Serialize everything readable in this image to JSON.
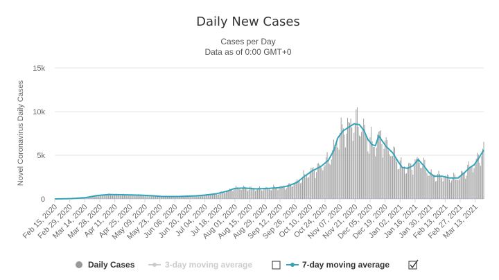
{
  "colors": {
    "bars": "#999999",
    "line": "#33a3b8",
    "grid": "#e6e6e6",
    "disabled": "#cccccc",
    "text": "#333333"
  },
  "chart_data": {
    "type": "bar",
    "title": "Daily New Cases",
    "subtitle": [
      "Cases per Day",
      "Data as of 0:00 GMT+0"
    ],
    "ylabel": "Novel Coronavirus Daily Cases",
    "xlabel": "",
    "ylim": [
      0,
      15000
    ],
    "yticks": [
      0,
      5000,
      10000,
      15000
    ],
    "ytick_labels": [
      "0",
      "5k",
      "10k",
      "15k"
    ],
    "grid": true,
    "x_start": "2020-02-15",
    "x_end": "2021-03-21",
    "xtick_labels": [
      "Feb 15, 2020",
      "Feb 29, 2020",
      "Mar 14, 2020",
      "Mar 28, 2020",
      "Apr 11, 2020",
      "Apr 25, 2020",
      "May 09, 2020",
      "May 23, 2020",
      "Jun 06, 2020",
      "Jun 20, 2020",
      "Jul 04, 2020",
      "Jul 18, 2020",
      "Aug 01, 2020",
      "Aug 15, 2020",
      "Aug 29, 2020",
      "Sep 12, 2020",
      "Sep 26, 2020",
      "Oct 10, 2020",
      "Oct 24, 2020",
      "Nov 07, 2020",
      "Nov 21, 2020",
      "Dec 05, 2020",
      "Dec 19, 2020",
      "Jan 02, 2021",
      "Jan 16, 2021",
      "Jan 30, 2021",
      "Feb 13, 2021",
      "Feb 27, 2021",
      "Mar 13, 2021"
    ],
    "legend_placement": "bottom",
    "series": [
      {
        "name": "Daily Cases",
        "type": "bar",
        "visible": true
      },
      {
        "name": "3-day moving average",
        "type": "line",
        "visible": false
      },
      {
        "name": "7-day moving average",
        "type": "line",
        "visible": true
      }
    ],
    "seven_day_average_points": [
      [
        "2020-02-15",
        0
      ],
      [
        "2020-03-01",
        30
      ],
      [
        "2020-03-15",
        150
      ],
      [
        "2020-03-25",
        380
      ],
      [
        "2020-04-05",
        500
      ],
      [
        "2020-04-20",
        470
      ],
      [
        "2020-05-05",
        430
      ],
      [
        "2020-05-15",
        370
      ],
      [
        "2020-05-25",
        280
      ],
      [
        "2020-06-10",
        280
      ],
      [
        "2020-06-25",
        350
      ],
      [
        "2020-07-05",
        450
      ],
      [
        "2020-07-15",
        600
      ],
      [
        "2020-07-25",
        900
      ],
      [
        "2020-08-01",
        1200
      ],
      [
        "2020-08-10",
        1250
      ],
      [
        "2020-08-20",
        1150
      ],
      [
        "2020-09-01",
        1200
      ],
      [
        "2020-09-12",
        1300
      ],
      [
        "2020-09-20",
        1500
      ],
      [
        "2020-09-28",
        1900
      ],
      [
        "2020-10-05",
        2600
      ],
      [
        "2020-10-12",
        3200
      ],
      [
        "2020-10-20",
        3700
      ],
      [
        "2020-10-27",
        4400
      ],
      [
        "2020-11-01",
        5500
      ],
      [
        "2020-11-05",
        7000
      ],
      [
        "2020-11-10",
        7800
      ],
      [
        "2020-11-15",
        8200
      ],
      [
        "2020-11-20",
        8600
      ],
      [
        "2020-11-25",
        8500
      ],
      [
        "2020-11-29",
        7900
      ],
      [
        "2020-12-03",
        6800
      ],
      [
        "2020-12-07",
        6200
      ],
      [
        "2020-12-10",
        6100
      ],
      [
        "2020-12-13",
        7200
      ],
      [
        "2020-12-16",
        6700
      ],
      [
        "2020-12-20",
        6000
      ],
      [
        "2020-12-26",
        5300
      ],
      [
        "2020-12-31",
        4300
      ],
      [
        "2021-01-04",
        3600
      ],
      [
        "2021-01-09",
        3500
      ],
      [
        "2021-01-14",
        3800
      ],
      [
        "2021-01-19",
        4500
      ],
      [
        "2021-01-24",
        3800
      ],
      [
        "2021-01-29",
        3000
      ],
      [
        "2021-02-03",
        2600
      ],
      [
        "2021-02-10",
        2600
      ],
      [
        "2021-02-17",
        2400
      ],
      [
        "2021-02-25",
        2400
      ],
      [
        "2021-03-03",
        3000
      ],
      [
        "2021-03-08",
        3600
      ],
      [
        "2021-03-12",
        3900
      ],
      [
        "2021-03-16",
        4600
      ],
      [
        "2021-03-21",
        5600
      ]
    ]
  },
  "legend": {
    "daily_cases": "Daily Cases",
    "three_day": "3-day moving average",
    "seven_day": "7-day moving average"
  }
}
